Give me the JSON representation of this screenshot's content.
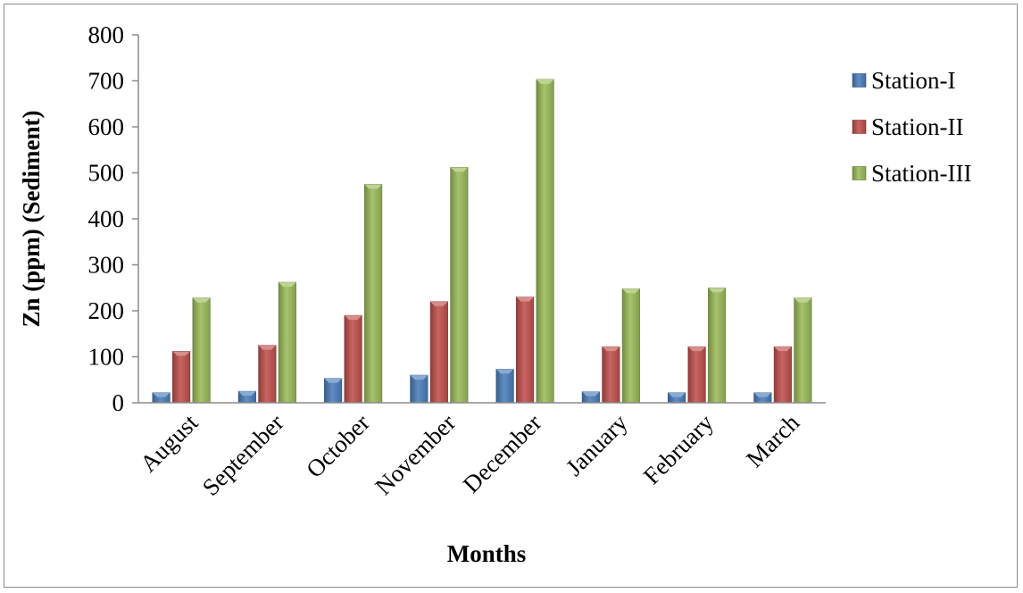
{
  "chart_data": {
    "type": "bar",
    "title": "",
    "xlabel": "Months",
    "ylabel": "Zn (ppm) (Sediment)",
    "ylim": [
      0,
      800
    ],
    "yticks": [
      "0",
      "100",
      "200",
      "300",
      "400",
      "500",
      "600",
      "700",
      "800"
    ],
    "grid": false,
    "legend_position": "right",
    "categories": [
      "August",
      "September",
      "October",
      "November",
      "December",
      "January",
      "February",
      "March"
    ],
    "series": [
      {
        "name": "Station-I",
        "color": "#4a7ebb",
        "values": [
          22,
          25,
          53,
          60,
          73,
          24,
          22,
          22
        ]
      },
      {
        "name": "Station-II",
        "color": "#c0504d",
        "values": [
          112,
          125,
          190,
          220,
          230,
          122,
          122,
          122
        ]
      },
      {
        "name": "Station-III",
        "color": "#9bbb59",
        "values": [
          228,
          262,
          475,
          512,
          703,
          248,
          250,
          228
        ]
      }
    ]
  }
}
